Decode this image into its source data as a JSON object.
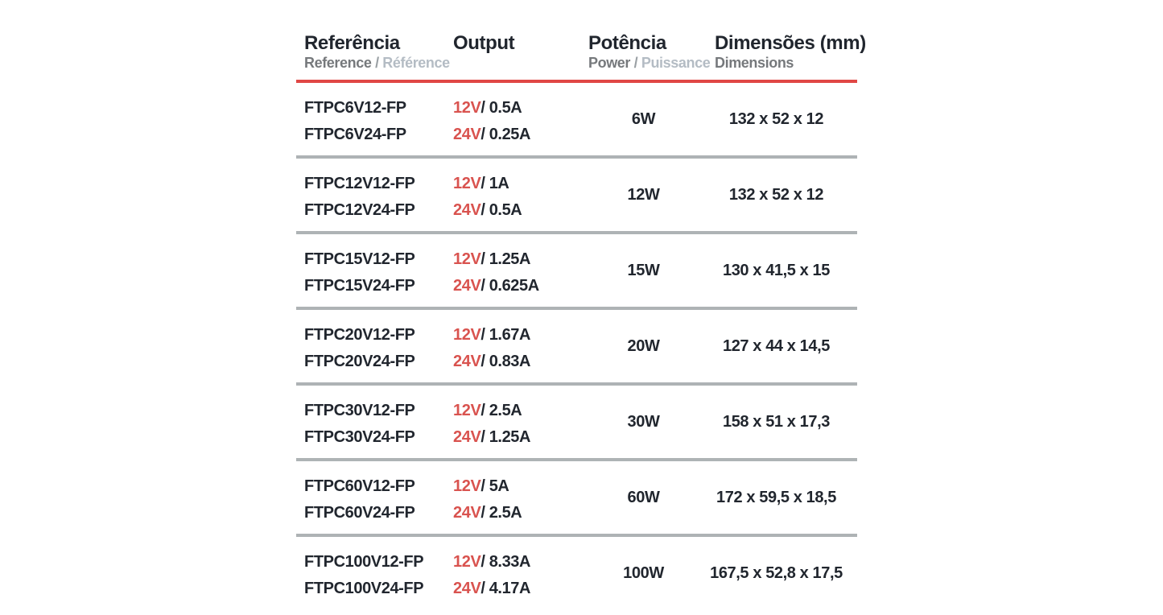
{
  "colors": {
    "accent_red": "#d9534f",
    "header_rule_red": "#e04745",
    "separator_gray": "#aeb3b5",
    "text_dark": "#21262e",
    "subtitle_dark_gray": "#76797c",
    "subtitle_slash_gray": "#9aa0a4",
    "subtitle_light_gray": "#b4bcc4"
  },
  "table": {
    "columns": [
      {
        "title": "Referência",
        "subtitle_primary": "Reference",
        "subtitle_separator": "/",
        "subtitle_secondary": "Référence"
      },
      {
        "title": "Output"
      },
      {
        "title": "Potência",
        "subtitle_primary": "Power",
        "subtitle_separator": "/",
        "subtitle_secondary": "Puissance"
      },
      {
        "title": "Dimensões (mm)",
        "subtitle_primary": "Dimensions"
      }
    ],
    "rows": [
      {
        "references": [
          "FTPC6V12-FP",
          "FTPC6V24-FP"
        ],
        "outputs": [
          {
            "voltage": "12V",
            "current": "/ 0.5A"
          },
          {
            "voltage": "24V",
            "current": "/ 0.25A"
          }
        ],
        "power": "6W",
        "dimensions": "132 x 52 x 12"
      },
      {
        "references": [
          "FTPC12V12-FP",
          "FTPC12V24-FP"
        ],
        "outputs": [
          {
            "voltage": "12V",
            "current": "/ 1A"
          },
          {
            "voltage": "24V",
            "current": "/ 0.5A"
          }
        ],
        "power": "12W",
        "dimensions": "132 x 52 x 12"
      },
      {
        "references": [
          "FTPC15V12-FP",
          "FTPC15V24-FP"
        ],
        "outputs": [
          {
            "voltage": "12V",
            "current": "/ 1.25A"
          },
          {
            "voltage": "24V",
            "current": "/ 0.625A"
          }
        ],
        "power": "15W",
        "dimensions": "130 x 41,5 x 15"
      },
      {
        "references": [
          "FTPC20V12-FP",
          "FTPC20V24-FP"
        ],
        "outputs": [
          {
            "voltage": "12V",
            "current": "/ 1.67A"
          },
          {
            "voltage": "24V",
            "current": "/ 0.83A"
          }
        ],
        "power": "20W",
        "dimensions": "127 x 44 x 14,5"
      },
      {
        "references": [
          "FTPC30V12-FP",
          "FTPC30V24-FP"
        ],
        "outputs": [
          {
            "voltage": "12V",
            "current": "/ 2.5A"
          },
          {
            "voltage": "24V",
            "current": "/ 1.25A"
          }
        ],
        "power": "30W",
        "dimensions": "158 x 51 x 17,3"
      },
      {
        "references": [
          "FTPC60V12-FP",
          "FTPC60V24-FP"
        ],
        "outputs": [
          {
            "voltage": "12V",
            "current": "/ 5A"
          },
          {
            "voltage": "24V",
            "current": "/ 2.5A"
          }
        ],
        "power": "60W",
        "dimensions": "172 x 59,5 x 18,5"
      },
      {
        "references": [
          "FTPC100V12-FP",
          "FTPC100V24-FP"
        ],
        "outputs": [
          {
            "voltage": "12V",
            "current": "/ 8.33A"
          },
          {
            "voltage": "24V",
            "current": "/ 4.17A"
          }
        ],
        "power": "100W",
        "dimensions": "167,5 x 52,8 x 17,5"
      }
    ]
  }
}
